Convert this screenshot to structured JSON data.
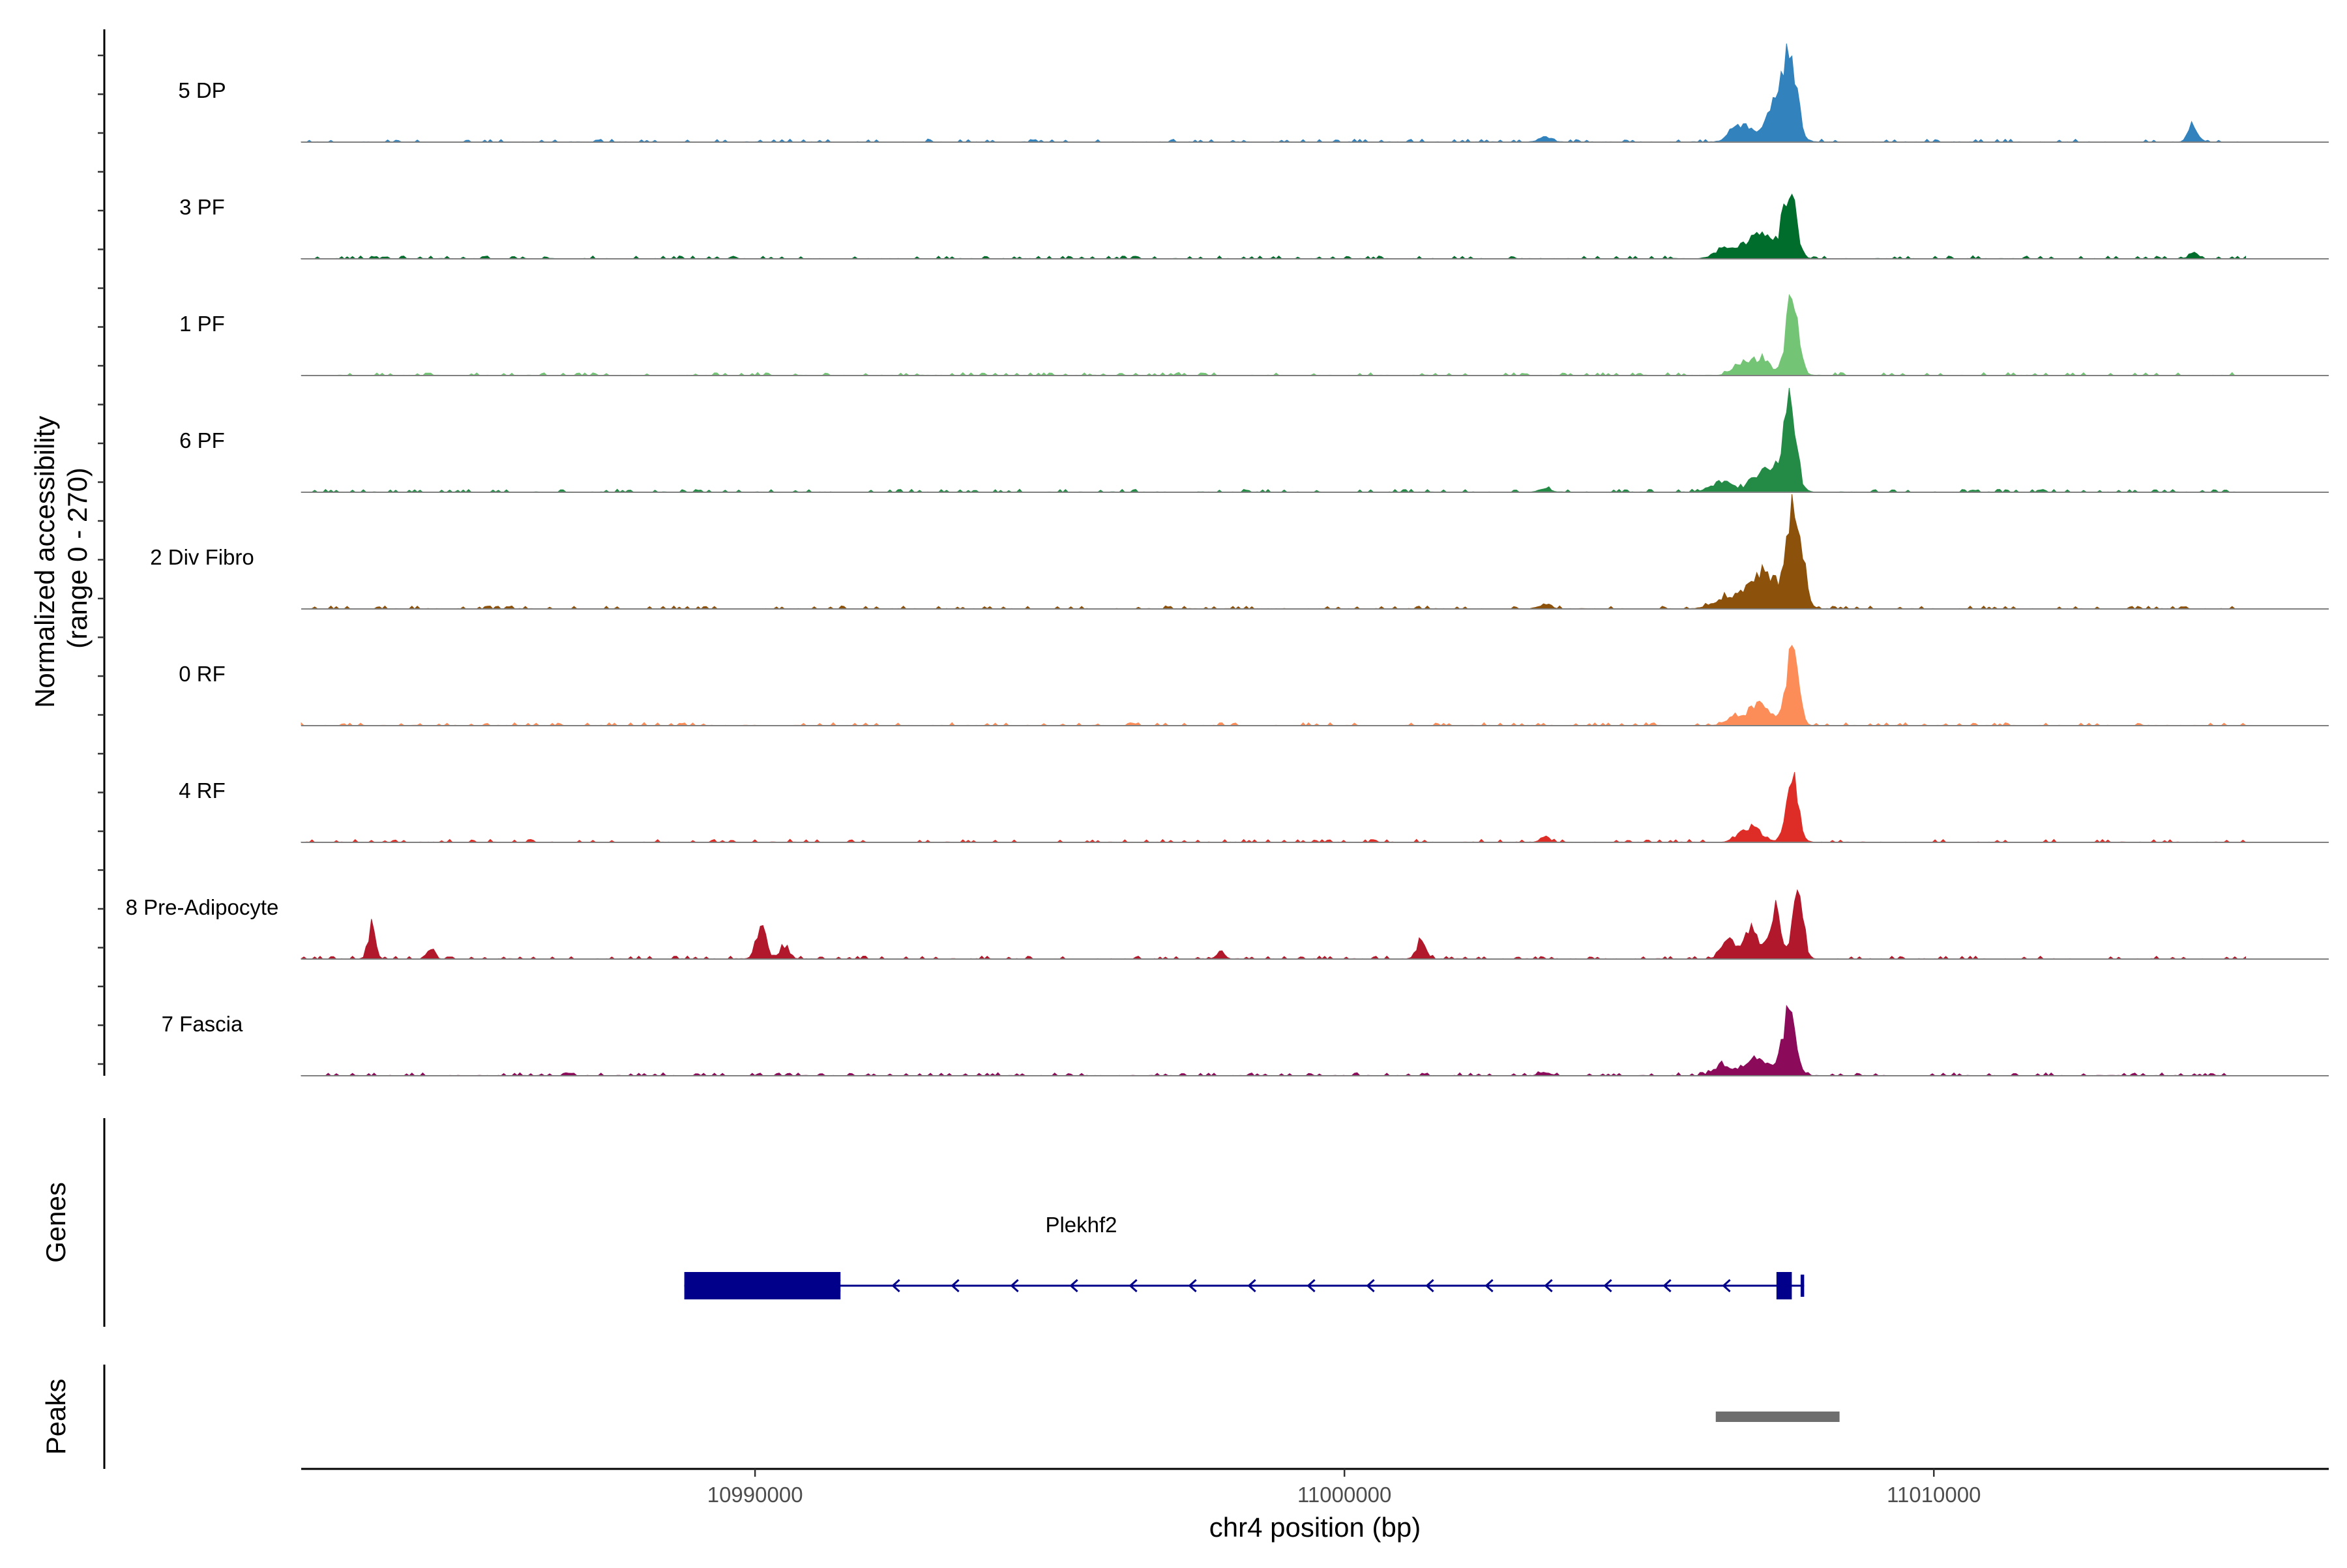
{
  "chart_data": {
    "type": "area",
    "title": "",
    "ylabel": "Normalized accessibility\n(range 0 - 270)",
    "xlabel": "chr4 position (bp)",
    "xlim": [
      10982300,
      11016700
    ],
    "ylim": [
      0,
      270
    ],
    "x_ticks": [
      10990000,
      11000000,
      11010000
    ],
    "x_tick_labels": [
      "10990000",
      "11000000",
      "11010000"
    ],
    "tracks": [
      {
        "name": "5 DP",
        "color": "#3182bd",
        "peaks": [
          [
            11007550,
            190,
            120
          ],
          [
            11007300,
            80,
            200
          ],
          [
            11006700,
            40,
            150
          ],
          [
            11014400,
            40,
            80
          ],
          [
            11003400,
            12,
            100
          ]
        ]
      },
      {
        "name": "3 PF",
        "color": "#006d2c",
        "peaks": [
          [
            11007550,
            160,
            110
          ],
          [
            11007050,
            55,
            220
          ],
          [
            11006500,
            28,
            180
          ],
          [
            11014400,
            15,
            70
          ]
        ]
      },
      {
        "name": "1 PF",
        "color": "#74c476",
        "peaks": [
          [
            11007600,
            200,
            100
          ],
          [
            11007050,
            40,
            160
          ],
          [
            11006700,
            22,
            140
          ]
        ]
      },
      {
        "name": "6 PF",
        "color": "#238b45",
        "peaks": [
          [
            11007550,
            190,
            110
          ],
          [
            11007150,
            50,
            200
          ],
          [
            11006400,
            22,
            200
          ],
          [
            11003400,
            8,
            100
          ]
        ]
      },
      {
        "name": "2 Div Fibro",
        "color": "#8c510a",
        "peaks": [
          [
            11007650,
            250,
            120
          ],
          [
            11007100,
            90,
            240
          ],
          [
            11006500,
            25,
            220
          ],
          [
            11003400,
            10,
            100
          ]
        ]
      },
      {
        "name": "0 RF",
        "color": "#fc8d59",
        "peaks": [
          [
            11007600,
            170,
            100
          ],
          [
            11007050,
            45,
            200
          ],
          [
            11006600,
            18,
            130
          ]
        ]
      },
      {
        "name": "4 RF",
        "color": "#de2d26",
        "peaks": [
          [
            11007600,
            155,
            100
          ],
          [
            11006900,
            35,
            180
          ],
          [
            11003400,
            12,
            80
          ]
        ]
      },
      {
        "name": "8 Pre-Adipocyte",
        "color": "#b2182b",
        "peaks": [
          [
            11007700,
            190,
            80
          ],
          [
            11007300,
            120,
            90
          ],
          [
            11006900,
            80,
            120
          ],
          [
            11006500,
            60,
            100
          ],
          [
            10983500,
            80,
            60
          ],
          [
            10990100,
            80,
            80
          ],
          [
            10990500,
            30,
            80
          ],
          [
            11001300,
            40,
            80
          ],
          [
            10984500,
            20,
            60
          ],
          [
            10997900,
            18,
            60
          ]
        ]
      },
      {
        "name": "7 Fascia",
        "color": "#8c0a5a",
        "peaks": [
          [
            11007550,
            150,
            110
          ],
          [
            11007000,
            45,
            220
          ],
          [
            11006400,
            22,
            140
          ],
          [
            11003400,
            8,
            90
          ]
        ]
      }
    ],
    "genes": [
      {
        "name": "Plekhf2",
        "strand": "-",
        "start": 10988800,
        "end": 11007800,
        "exons": [
          [
            10988800,
            10991450
          ],
          [
            11007330,
            11007590
          ],
          [
            11007740,
            11007800
          ]
        ]
      }
    ],
    "peaks_track": {
      "label": "Peaks",
      "regions": [
        [
          11006300,
          11008400
        ]
      ],
      "color": "#6e6e6e"
    },
    "genes_track_label": "Genes"
  }
}
